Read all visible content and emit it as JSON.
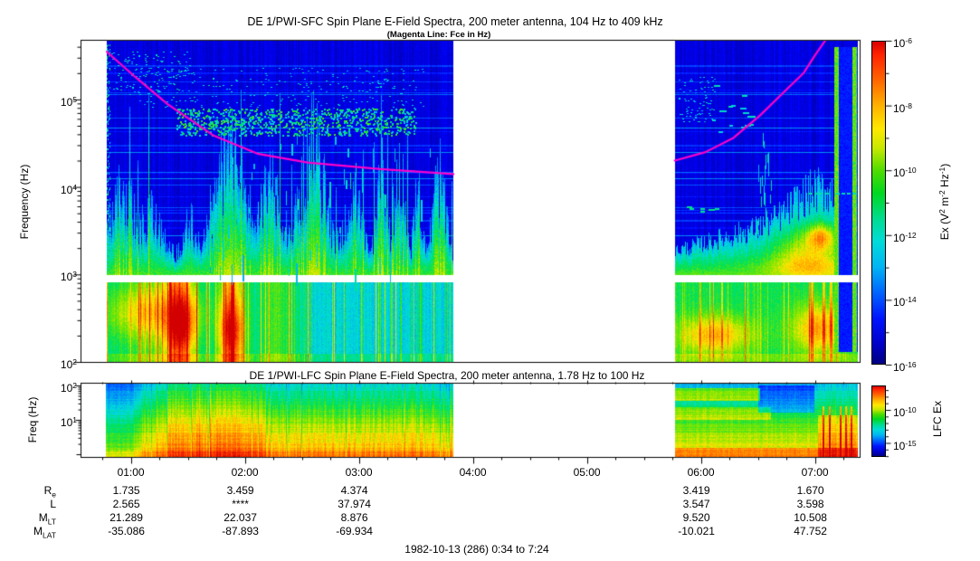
{
  "figure": {
    "footer": "1982-10-13 (286) 0:34 to 7:24"
  },
  "chart_data": [
    {
      "type": "heatmap",
      "id": "sfc",
      "title": "DE 1/PWI-SFC  Spin Plane E-Field Spectra, 200 meter antenna, 104 Hz to 409 kHz",
      "subtitle": "(Magenta Line: Fce in Hz)",
      "ylabel": "Frequency (Hz)",
      "ytick_labels": [
        "10^2",
        "10^3",
        "10^4",
        "10^5"
      ],
      "ylim_hz": [
        100,
        470000
      ],
      "xlim_hours": [
        0.5667,
        7.4
      ],
      "time_range": "0:34 to 7:24",
      "grid": false,
      "colorbar": {
        "label": "Ex (V^2 m^-2 Hz^-1)",
        "tick_labels": [
          "10^-6",
          "10^-8",
          "10^-10",
          "10^-12",
          "10^-14",
          "10^-16"
        ],
        "palette": "rainbow, red = high intensity, dark blue = low"
      },
      "data_segments_hours": [
        [
          0.789,
          3.829
        ],
        [
          5.77,
          7.38
        ]
      ],
      "blanked_band_hz": [
        800,
        1000
      ],
      "fce_line": {
        "color": "#FF00CC",
        "left_segment_hour_hz": [
          [
            0.789,
            350000
          ],
          [
            1.04,
            180000
          ],
          [
            1.32,
            89000
          ],
          [
            1.72,
            39000
          ],
          [
            2.11,
            24000
          ],
          [
            2.55,
            19000
          ],
          [
            3.19,
            16000
          ],
          [
            3.83,
            14000
          ]
        ],
        "right_segment_hour_hz": [
          [
            5.77,
            20000
          ],
          [
            6.04,
            25000
          ],
          [
            6.28,
            36000
          ],
          [
            6.52,
            66000
          ],
          [
            6.74,
            126000
          ],
          [
            6.9,
            200000
          ],
          [
            7.0,
            320000
          ],
          [
            7.09,
            470000
          ]
        ]
      },
      "features": [
        "dark blue (weak) background above ~1 kHz with scattered cyan bursts",
        "dense cyan emission band near 1.5-3e5 Hz between ~01:10 and ~03:40",
        "green/yellow broadband enhancements below ~3 kHz from ~00:50 to ~02:30",
        "turquoise/green band with yellow-orange patches below the 0.8-1 kHz blanked strip",
        "second data segment shows rising green emission with orange core near 06:30-07:00 and bright vertical green/dark-blue stripes near 07:10-07:20"
      ]
    },
    {
      "type": "heatmap",
      "id": "lfc",
      "title": "DE 1/PWI-LFC  Spin Plane E-Field Spectra, 200 meter antenna, 1.78 Hz to 100 Hz",
      "ylabel": "Freq (Hz)",
      "ytick_labels": [
        "10^2",
        "10^1"
      ],
      "ylim_hz": [
        1.78,
        100
      ],
      "grid": false,
      "colorbar": {
        "label": "LFC Ex",
        "tick_labels": [
          "10^-10",
          "10^-15"
        ],
        "palette": "rainbow, red = high intensity"
      },
      "data_segments_hours": [
        [
          0.78,
          3.829
        ],
        [
          5.77,
          7.38
        ]
      ],
      "features": [
        "intensity increases toward low frequency: cyan/green at top, orange/red at bottom",
        "strong red columns between ~01:15 and ~02:00",
        "second segment mostly green with orange band near top at 06:00-06:30, cyan patch ~06:30-06:50, red bursts after ~07:05"
      ]
    }
  ],
  "xaxis": {
    "hour_labels": [
      "01:00",
      "02:00",
      "03:00",
      "04:00",
      "05:00",
      "06:00",
      "07:00"
    ],
    "hours": [
      1,
      2,
      3,
      4,
      5,
      6,
      7
    ],
    "minor_tick_minutes": 15
  },
  "ephemeris": {
    "columns_hours": [
      1,
      2,
      3,
      4,
      5,
      6,
      7
    ],
    "rows": [
      {
        "label": "R",
        "sub": "e",
        "values": [
          "1.735",
          "3.459",
          "4.374",
          "",
          "",
          "3.419",
          "1.670"
        ]
      },
      {
        "label": "L",
        "sub": "",
        "values": [
          "2.565",
          "****",
          "37.974",
          "",
          "",
          "3.547",
          "3.598"
        ]
      },
      {
        "label": "M",
        "sub": "LT",
        "values": [
          "21.289",
          "22.037",
          "8.876",
          "",
          "",
          "9.520",
          "10.508"
        ]
      },
      {
        "label": "M",
        "sub": "LAT",
        "values": [
          "-35.086",
          "-87.893",
          "-69.934",
          "",
          "",
          "-10.021",
          "47.752"
        ]
      }
    ]
  }
}
